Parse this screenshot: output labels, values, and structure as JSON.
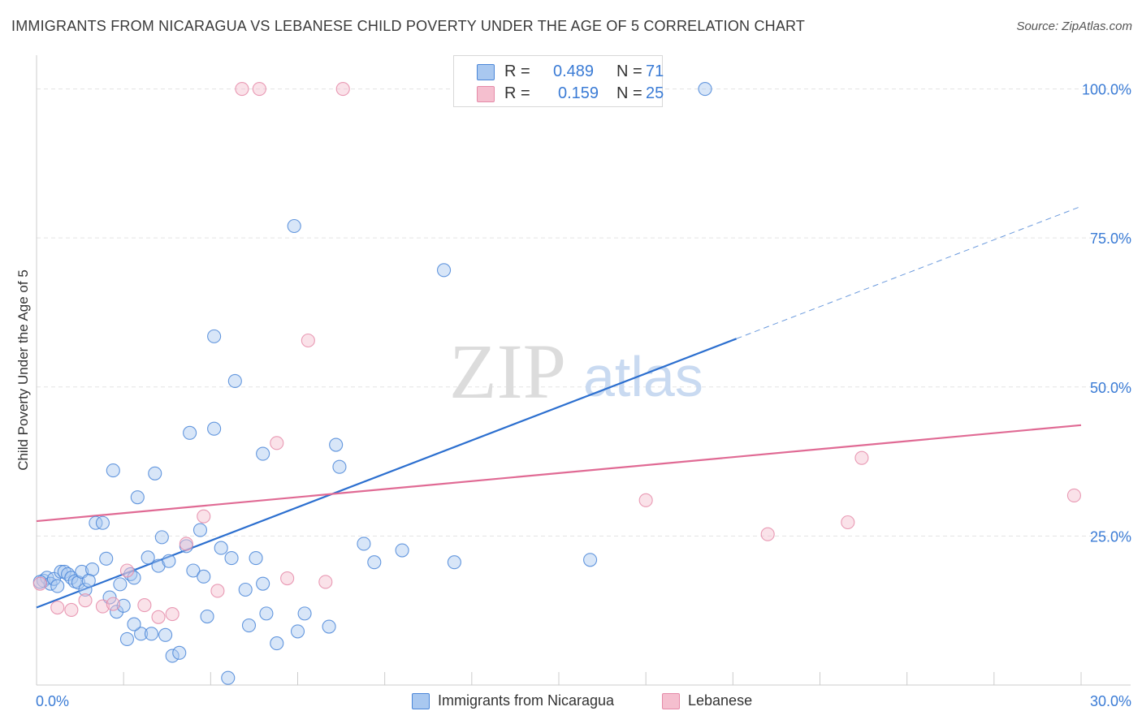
{
  "header": {
    "title": "IMMIGRANTS FROM NICARAGUA VS LEBANESE CHILD POVERTY UNDER THE AGE OF 5 CORRELATION CHART",
    "source": "Source: ZipAtlas.com"
  },
  "watermark": {
    "zip": "ZIP",
    "atlas": "atlas"
  },
  "legend": {
    "r_label": "R =",
    "n_label": "N =",
    "rows": [
      {
        "r": "0.489",
        "n": "71"
      },
      {
        "r": "0.159",
        "n": "25"
      }
    ]
  },
  "colors": {
    "blue_fill": "#a9c8f0",
    "blue_stroke": "#4a86d8",
    "blue_line": "#2c6fcf",
    "pink_fill": "#f5bfcf",
    "pink_stroke": "#e58aa8",
    "pink_line": "#e06a94",
    "tick_text": "#3a7bd5",
    "grid": "#e3e3e3"
  },
  "chart_data": {
    "type": "scatter",
    "title": "IMMIGRANTS FROM NICARAGUA VS LEBANESE CHILD POVERTY UNDER THE AGE OF 5 CORRELATION CHART",
    "xlabel": "",
    "ylabel": "Child Poverty Under the Age of 5",
    "xlim": [
      0,
      30
    ],
    "ylim": [
      0,
      102
    ],
    "x_tick_labels": [
      "0.0%",
      "30.0%"
    ],
    "y_ticks": [
      25,
      50,
      75,
      100
    ],
    "y_tick_labels": [
      "25.0%",
      "50.0%",
      "75.0%",
      "100.0%"
    ],
    "grid": true,
    "series": [
      {
        "name": "Immigrants from Nicaragua",
        "color": "#a9c8f0",
        "points": [
          [
            0.2,
            17.5
          ],
          [
            0.3,
            18.0
          ],
          [
            0.4,
            17.0
          ],
          [
            0.5,
            17.8
          ],
          [
            0.6,
            16.6
          ],
          [
            0.7,
            19.0
          ],
          [
            0.8,
            19.0
          ],
          [
            0.9,
            18.6
          ],
          [
            1.0,
            18.0
          ],
          [
            1.1,
            17.4
          ],
          [
            1.2,
            17.2
          ],
          [
            1.3,
            19.0
          ],
          [
            1.4,
            16.0
          ],
          [
            1.6,
            19.4
          ],
          [
            1.7,
            27.2
          ],
          [
            1.9,
            27.2
          ],
          [
            2.0,
            21.2
          ],
          [
            2.1,
            14.7
          ],
          [
            2.2,
            36.0
          ],
          [
            2.3,
            12.3
          ],
          [
            2.4,
            16.9
          ],
          [
            2.5,
            13.3
          ],
          [
            2.7,
            18.6
          ],
          [
            2.6,
            7.7
          ],
          [
            2.8,
            18.0
          ],
          [
            2.9,
            31.5
          ],
          [
            3.0,
            8.6
          ],
          [
            3.2,
            21.4
          ],
          [
            3.3,
            8.6
          ],
          [
            3.4,
            35.5
          ],
          [
            3.5,
            20.0
          ],
          [
            3.6,
            24.8
          ],
          [
            3.7,
            8.4
          ],
          [
            3.8,
            20.8
          ],
          [
            3.9,
            4.9
          ],
          [
            4.1,
            5.4
          ],
          [
            4.3,
            23.3
          ],
          [
            4.4,
            42.3
          ],
          [
            4.5,
            19.2
          ],
          [
            4.7,
            26.0
          ],
          [
            4.8,
            18.2
          ],
          [
            4.9,
            11.5
          ],
          [
            5.1,
            43.0
          ],
          [
            5.1,
            58.5
          ],
          [
            5.3,
            23.0
          ],
          [
            5.5,
            1.2
          ],
          [
            5.6,
            21.3
          ],
          [
            5.7,
            51.0
          ],
          [
            6.1,
            10.0
          ],
          [
            6.3,
            21.3
          ],
          [
            6.5,
            17.0
          ],
          [
            6.5,
            38.8
          ],
          [
            6.6,
            12.0
          ],
          [
            6.9,
            7.0
          ],
          [
            7.4,
            77.0
          ],
          [
            7.5,
            9.0
          ],
          [
            7.7,
            12.0
          ],
          [
            8.4,
            9.8
          ],
          [
            8.6,
            40.3
          ],
          [
            8.7,
            36.6
          ],
          [
            9.4,
            23.7
          ],
          [
            9.7,
            20.6
          ],
          [
            10.5,
            22.6
          ],
          [
            11.7,
            69.6
          ],
          [
            12.0,
            20.6
          ],
          [
            15.9,
            21.0
          ],
          [
            19.2,
            100.0
          ],
          [
            0.1,
            17.3
          ],
          [
            1.5,
            17.5
          ],
          [
            2.8,
            10.2
          ],
          [
            6.0,
            16.0
          ]
        ]
      },
      {
        "name": "Lebanese",
        "color": "#f5bfcf",
        "points": [
          [
            0.1,
            17.0
          ],
          [
            0.6,
            13.0
          ],
          [
            1.0,
            12.6
          ],
          [
            1.4,
            14.2
          ],
          [
            1.9,
            13.2
          ],
          [
            2.2,
            13.6
          ],
          [
            2.6,
            19.2
          ],
          [
            3.1,
            13.4
          ],
          [
            3.5,
            11.4
          ],
          [
            3.9,
            11.9
          ],
          [
            4.3,
            23.7
          ],
          [
            4.8,
            28.3
          ],
          [
            5.2,
            15.8
          ],
          [
            5.9,
            100.0
          ],
          [
            6.4,
            100.0
          ],
          [
            6.9,
            40.6
          ],
          [
            7.2,
            17.9
          ],
          [
            7.8,
            57.8
          ],
          [
            8.3,
            17.3
          ],
          [
            8.8,
            100.0
          ],
          [
            17.5,
            31.0
          ],
          [
            21.0,
            25.3
          ],
          [
            23.3,
            27.3
          ],
          [
            23.7,
            38.1
          ],
          [
            29.8,
            31.8
          ]
        ]
      }
    ],
    "trend_lines": [
      {
        "series": "Immigrants from Nicaragua",
        "solid": [
          [
            0,
            13.0
          ],
          [
            20.1,
            58.1
          ]
        ],
        "dashed": [
          [
            20.1,
            58.1
          ],
          [
            30,
            80.3
          ]
        ]
      },
      {
        "series": "Lebanese",
        "solid": [
          [
            0,
            27.5
          ],
          [
            30,
            43.6
          ]
        ]
      }
    ],
    "legend_position": "top-center"
  },
  "bottom_legend": {
    "items": [
      "Immigrants from Nicaragua",
      "Lebanese"
    ]
  }
}
